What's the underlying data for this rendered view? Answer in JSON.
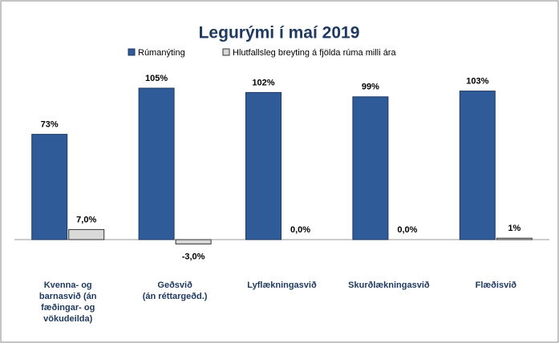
{
  "chart_data": {
    "type": "bar",
    "title": "Legurými  í  maí 2019",
    "categories": [
      "Kvenna- og\nbarnasvið  (án\nfæðingar- og\nvökudeilda)",
      "Geðsvið\n(án réttargeðd.)",
      "Lyflækningasvið",
      "Skurðlækningasvið",
      "Flæðisvið"
    ],
    "series": [
      {
        "name": "Rúmanýting",
        "color": "#2f5b98",
        "values": [
          73,
          105,
          102,
          99,
          103
        ],
        "value_labels": [
          "73%",
          "105%",
          "102%",
          "99%",
          "103%"
        ]
      },
      {
        "name": "Hlutfallsleg breyting á fjölda rúma milli ára",
        "color": "#d9d9d9",
        "values": [
          7.0,
          -3.0,
          0.0,
          0.0,
          1
        ],
        "value_labels": [
          "7,0%",
          "-3,0%",
          "0,0%",
          "0,0%",
          "1%"
        ]
      }
    ],
    "legend": "top"
  }
}
